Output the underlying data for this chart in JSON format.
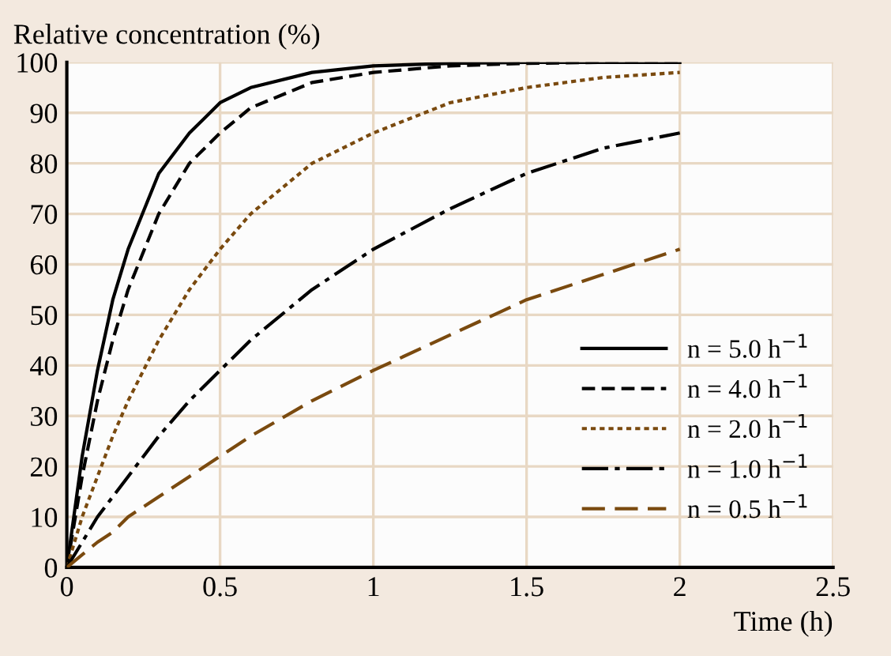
{
  "chart_data": {
    "type": "line",
    "ylabel": "Relative concentration (%)",
    "xlabel": "Time (h)",
    "x": [
      0,
      0.05,
      0.1,
      0.15,
      0.2,
      0.3,
      0.4,
      0.5,
      0.6,
      0.8,
      1.0,
      1.25,
      1.5,
      1.75,
      2.0
    ],
    "series": [
      {
        "name": "n = 5.0 h$^{−1}$",
        "color": "#000000",
        "line_style": "solid",
        "values": [
          0,
          22,
          39,
          53,
          63,
          78,
          86,
          92,
          95,
          98,
          99.3,
          99.8,
          100,
          100,
          100
        ]
      },
      {
        "name": "n = 4.0 h$^{−1}$",
        "color": "#000000",
        "line_style": "dashed",
        "values": [
          0,
          18,
          33,
          45,
          55,
          70,
          80,
          86,
          91,
          96,
          98,
          99.3,
          99.8,
          100,
          100
        ]
      },
      {
        "name": "n = 2.0 h$^{−1}$",
        "color": "#7a4a0f",
        "line_style": "dotted",
        "values": [
          0,
          10,
          18,
          26,
          33,
          45,
          55,
          63,
          70,
          80,
          86,
          92,
          95,
          97,
          98
        ]
      },
      {
        "name": "n = 1.0 h$^{−1}$",
        "color": "#000000",
        "line_style": "dashdot",
        "values": [
          0,
          5,
          10,
          14,
          18,
          26,
          33,
          39,
          45,
          55,
          63,
          71,
          78,
          83,
          86
        ]
      },
      {
        "name": "n = 0.5 h$^{−1}$",
        "color": "#7a4a0f",
        "line_style": "longdash",
        "values": [
          0,
          2.5,
          5,
          7,
          10,
          14,
          18,
          22,
          26,
          33,
          39,
          46,
          53,
          58,
          63
        ]
      }
    ],
    "xlim": [
      0,
      2.5
    ],
    "ylim": [
      0,
      100
    ],
    "xticks": [
      0,
      0.5,
      1,
      1.5,
      2,
      2.5
    ],
    "yticks": [
      0,
      10,
      20,
      30,
      40,
      50,
      60,
      70,
      80,
      90,
      100
    ],
    "grid": true,
    "legend": "bottom right"
  }
}
